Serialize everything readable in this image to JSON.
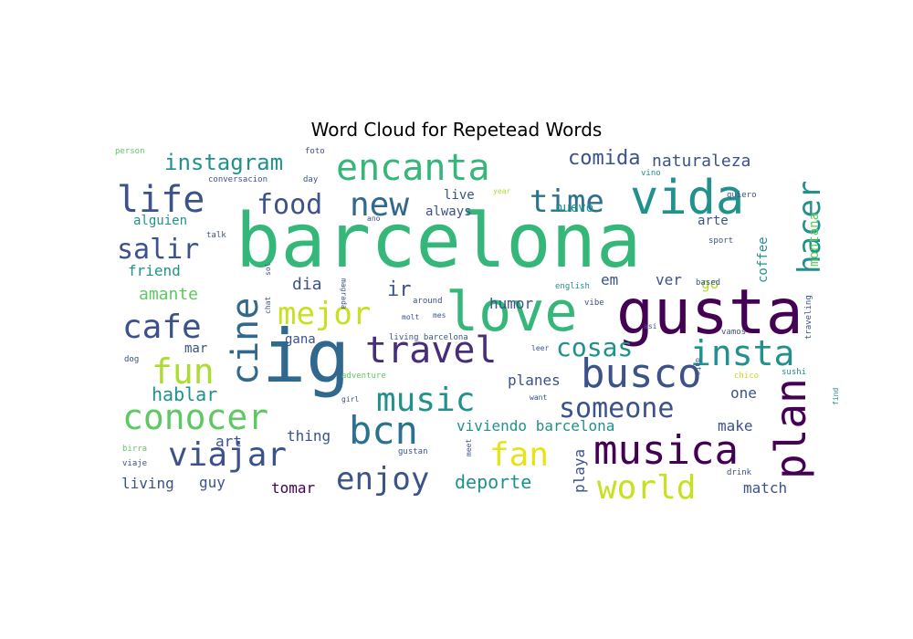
{
  "chart_data": {
    "type": "wordcloud",
    "title": "Word Cloud for Repetead Words",
    "colormap": "viridis",
    "background": "#ffffff",
    "words": [
      {
        "text": "barcelona",
        "weight": 1.0,
        "color": "#35b779"
      },
      {
        "text": "gusta",
        "weight": 0.82,
        "color": "#440154"
      },
      {
        "text": "ig",
        "weight": 0.8,
        "color": "#31688e"
      },
      {
        "text": "love",
        "weight": 0.76,
        "color": "#35b779"
      },
      {
        "text": "vida",
        "weight": 0.6,
        "color": "#21918c"
      },
      {
        "text": "busco",
        "weight": 0.48,
        "color": "#3b528b"
      },
      {
        "text": "musica",
        "weight": 0.48,
        "color": "#440154"
      },
      {
        "text": "travel",
        "weight": 0.46,
        "color": "#472d7b"
      },
      {
        "text": "encanta",
        "weight": 0.45,
        "color": "#35b779"
      },
      {
        "text": "plan",
        "weight": 0.44,
        "color": "#440154"
      },
      {
        "text": "life",
        "weight": 0.42,
        "color": "#3b528b"
      },
      {
        "text": "bcn",
        "weight": 0.42,
        "color": "#2c728e"
      },
      {
        "text": "cine",
        "weight": 0.42,
        "color": "#31688e"
      },
      {
        "text": "conocer",
        "weight": 0.42,
        "color": "#5ec962"
      },
      {
        "text": "insta",
        "weight": 0.42,
        "color": "#21918c"
      },
      {
        "text": "new",
        "weight": 0.41,
        "color": "#31688e"
      },
      {
        "text": "viajar",
        "weight": 0.41,
        "color": "#3b528b"
      },
      {
        "text": "world",
        "weight": 0.4,
        "color": "#c8e020"
      },
      {
        "text": "music",
        "weight": 0.4,
        "color": "#21918c"
      },
      {
        "text": "fun",
        "weight": 0.4,
        "color": "#addc30"
      },
      {
        "text": "enjoy",
        "weight": 0.38,
        "color": "#3b528b"
      },
      {
        "text": "mejor",
        "weight": 0.38,
        "color": "#c8e020"
      },
      {
        "text": "cafe",
        "weight": 0.36,
        "color": "#3b528b"
      },
      {
        "text": "time",
        "weight": 0.36,
        "color": "#2c728e"
      },
      {
        "text": "fan",
        "weight": 0.36,
        "color": "#e5e419"
      },
      {
        "text": "someone",
        "weight": 0.36,
        "color": "#3b528b"
      },
      {
        "text": "hacer",
        "weight": 0.36,
        "color": "#21918c"
      },
      {
        "text": "food",
        "weight": 0.34,
        "color": "#3b528b"
      },
      {
        "text": "salir",
        "weight": 0.3,
        "color": "#3b528b"
      },
      {
        "text": "cosas",
        "weight": 0.28,
        "color": "#21918c"
      },
      {
        "text": "instagram",
        "weight": 0.26,
        "color": "#21918c"
      },
      {
        "text": "comida",
        "weight": 0.22,
        "color": "#3b528b"
      },
      {
        "text": "naturaleza",
        "weight": 0.18,
        "color": "#3b528b"
      },
      {
        "text": "hablar",
        "weight": 0.2,
        "color": "#21918c"
      },
      {
        "text": "deporte",
        "weight": 0.2,
        "color": "#21918c"
      },
      {
        "text": "amante",
        "weight": 0.18,
        "color": "#5ec962"
      },
      {
        "text": "ir",
        "weight": 0.2,
        "color": "#3b528b"
      },
      {
        "text": "dia",
        "weight": 0.17,
        "color": "#3b528b"
      },
      {
        "text": "viviendo barcelona",
        "weight": 0.16,
        "color": "#21918c"
      },
      {
        "text": "planes",
        "weight": 0.16,
        "color": "#3b528b"
      },
      {
        "text": "humor",
        "weight": 0.15,
        "color": "#3b528b"
      },
      {
        "text": "thing",
        "weight": 0.15,
        "color": "#3b528b"
      },
      {
        "text": "tomar",
        "weight": 0.15,
        "color": "#440154"
      },
      {
        "text": "make",
        "weight": 0.15,
        "color": "#3b528b"
      },
      {
        "text": "match",
        "weight": 0.15,
        "color": "#3b528b"
      },
      {
        "text": "living",
        "weight": 0.15,
        "color": "#3b528b"
      },
      {
        "text": "guy",
        "weight": 0.15,
        "color": "#3b528b"
      },
      {
        "text": "art",
        "weight": 0.15,
        "color": "#3b528b"
      },
      {
        "text": "playa",
        "weight": 0.15,
        "color": "#3b528b"
      },
      {
        "text": "one",
        "weight": 0.15,
        "color": "#3b528b"
      },
      {
        "text": "alguien",
        "weight": 0.14,
        "color": "#21918c"
      },
      {
        "text": "friend",
        "weight": 0.14,
        "color": "#21918c"
      },
      {
        "text": "live",
        "weight": 0.14,
        "color": "#3b528b"
      },
      {
        "text": "always",
        "weight": 0.14,
        "color": "#3b528b"
      },
      {
        "text": "nuevo",
        "weight": 0.13,
        "color": "#21918c"
      },
      {
        "text": "arte",
        "weight": 0.14,
        "color": "#3b528b"
      },
      {
        "text": "coffee",
        "weight": 0.14,
        "color": "#21918c"
      },
      {
        "text": "montana",
        "weight": 0.13,
        "color": "#5ec962"
      },
      {
        "text": "go",
        "weight": 0.15,
        "color": "#addc30"
      },
      {
        "text": "em",
        "weight": 0.15,
        "color": "#3b528b"
      },
      {
        "text": "ver",
        "weight": 0.15,
        "color": "#3b528b"
      },
      {
        "text": "mar",
        "weight": 0.15,
        "color": "#3b528b"
      },
      {
        "text": "gana",
        "weight": 0.13,
        "color": "#3b528b"
      },
      {
        "text": "person",
        "weight": 0.05,
        "color": "#5ec962"
      },
      {
        "text": "foto",
        "weight": 0.05,
        "color": "#3b528b"
      },
      {
        "text": "conversacion",
        "weight": 0.05,
        "color": "#3b528b"
      },
      {
        "text": "day",
        "weight": 0.05,
        "color": "#3b528b"
      },
      {
        "text": "talk",
        "weight": 0.05,
        "color": "#3b528b"
      },
      {
        "text": "ano",
        "weight": 0.04,
        "color": "#3b528b"
      },
      {
        "text": "year",
        "weight": 0.04,
        "color": "#addc30"
      },
      {
        "text": "vino",
        "weight": 0.05,
        "color": "#21918c"
      },
      {
        "text": "quiero",
        "weight": 0.05,
        "color": "#3b528b"
      },
      {
        "text": "sport",
        "weight": 0.05,
        "color": "#3b528b"
      },
      {
        "text": "magrada",
        "weight": 0.04,
        "color": "#3b528b"
      },
      {
        "text": "based",
        "weight": 0.05,
        "color": "#3b528b"
      },
      {
        "text": "sol",
        "weight": 0.04,
        "color": "#3b528b"
      },
      {
        "text": "chat",
        "weight": 0.04,
        "color": "#3b528b"
      },
      {
        "text": "around",
        "weight": 0.05,
        "color": "#3b528b"
      },
      {
        "text": "english",
        "weight": 0.05,
        "color": "#21918c"
      },
      {
        "text": "vibe",
        "weight": 0.04,
        "color": "#3b528b"
      },
      {
        "text": "molt",
        "weight": 0.04,
        "color": "#3b528b"
      },
      {
        "text": "mes",
        "weight": 0.04,
        "color": "#3b528b"
      },
      {
        "text": "living barcelona",
        "weight": 0.05,
        "color": "#3b528b"
      },
      {
        "text": "asi",
        "weight": 0.04,
        "color": "#3b528b"
      },
      {
        "text": "vamos",
        "weight": 0.04,
        "color": "#3b528b"
      },
      {
        "text": "traveling",
        "weight": 0.05,
        "color": "#3b528b"
      },
      {
        "text": "leer",
        "weight": 0.04,
        "color": "#3b528b"
      },
      {
        "text": "date",
        "weight": 0.04,
        "color": "#3b528b"
      },
      {
        "text": "dog",
        "weight": 0.05,
        "color": "#3b528b"
      },
      {
        "text": "adventure",
        "weight": 0.05,
        "color": "#5ec962"
      },
      {
        "text": "chico",
        "weight": 0.05,
        "color": "#c8e020"
      },
      {
        "text": "sushi",
        "weight": 0.05,
        "color": "#21918c"
      },
      {
        "text": "girl",
        "weight": 0.04,
        "color": "#3b528b"
      },
      {
        "text": "want",
        "weight": 0.04,
        "color": "#3b528b"
      },
      {
        "text": "find",
        "weight": 0.04,
        "color": "#21918c"
      },
      {
        "text": "birra",
        "weight": 0.05,
        "color": "#5ec962"
      },
      {
        "text": "gustan",
        "weight": 0.05,
        "color": "#3b528b"
      },
      {
        "text": "meet",
        "weight": 0.04,
        "color": "#3b528b"
      },
      {
        "text": "viaje",
        "weight": 0.05,
        "color": "#3b528b"
      },
      {
        "text": "drink",
        "weight": 0.05,
        "color": "#3b528b"
      }
    ]
  }
}
